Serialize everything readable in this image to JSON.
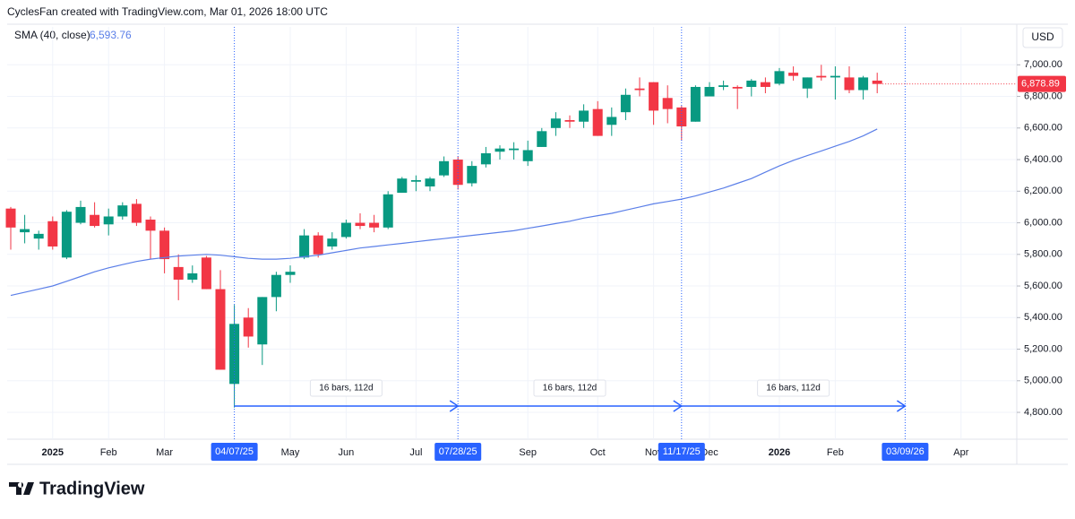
{
  "header": "CyclesFan created with TradingView.com, Mar 01, 2026 18:00 UTC",
  "logo": "TradingView",
  "chart_data": {
    "type": "candlestick",
    "currency": "USD",
    "up_color": "#089981",
    "down_color": "#f23645",
    "grid": true,
    "categories": [
      null,
      null,
      null,
      "2025",
      null,
      null,
      null,
      "Feb",
      null,
      null,
      null,
      "Mar",
      null,
      null,
      null,
      null,
      "04/07/25",
      null,
      null,
      null,
      "May",
      null,
      null,
      null,
      "Jun",
      null,
      null,
      null,
      null,
      "Jul",
      null,
      null,
      "07/28/25",
      null,
      null,
      null,
      null,
      "Sep",
      null,
      null,
      null,
      null,
      "Oct",
      null,
      null,
      null,
      "Nov",
      null,
      "11/17/25",
      null,
      "Dec",
      null,
      null,
      null,
      null,
      "2026",
      null,
      null,
      null,
      "Feb",
      null,
      null,
      null,
      null,
      "03/09/26",
      null,
      null,
      null,
      "Apr",
      null,
      null,
      null
    ],
    "open": [
      6090,
      5940,
      5900,
      6010,
      5780,
      6000,
      6050,
      5990,
      6040,
      6120,
      6020,
      5950,
      5720,
      5640,
      5780,
      5580,
      4980,
      5400,
      5230,
      5530,
      5670,
      5780,
      5920,
      5850,
      5910,
      6000,
      6000,
      5970,
      6190,
      6260,
      6230,
      6300,
      6400,
      6250,
      6370,
      6450,
      6460,
      6390,
      6480,
      6600,
      6650,
      6640,
      6720,
      6620,
      6700,
      6850,
      6890,
      6790,
      6730,
      6640,
      6800,
      6860,
      6860,
      6860,
      6890,
      6880,
      6950,
      6850,
      6930,
      6920,
      6920,
      6840,
      6900,
      null,
      null,
      null,
      null,
      null,
      null,
      null,
      null,
      null
    ],
    "high": [
      6100,
      6050,
      5950,
      6040,
      6080,
      6140,
      6130,
      6090,
      6130,
      6150,
      6040,
      5970,
      5800,
      5730,
      5790,
      5700,
      5480,
      5460,
      5530,
      5690,
      5730,
      5960,
      5940,
      5940,
      6020,
      6060,
      6050,
      6200,
      6290,
      6300,
      6290,
      6420,
      6420,
      6390,
      6480,
      6490,
      6510,
      6520,
      6600,
      6700,
      6680,
      6750,
      6770,
      6730,
      6850,
      6920,
      6890,
      6870,
      6740,
      6870,
      6890,
      6900,
      6870,
      6910,
      6920,
      6980,
      6990,
      6920,
      7000,
      6990,
      6990,
      6930,
      6950,
      null,
      null,
      null,
      null,
      null,
      null,
      null,
      null,
      null
    ],
    "low": [
      5830,
      5870,
      5830,
      5830,
      5770,
      5990,
      5970,
      5920,
      6020,
      5980,
      5770,
      5680,
      5510,
      5620,
      5580,
      5070,
      4830,
      5210,
      5100,
      5440,
      5620,
      5770,
      5780,
      5830,
      5900,
      5960,
      5940,
      5960,
      6190,
      6200,
      6200,
      6290,
      6210,
      6230,
      6350,
      6400,
      6400,
      6360,
      6480,
      6550,
      6600,
      6600,
      6550,
      6550,
      6650,
      6800,
      6620,
      6630,
      6520,
      6640,
      6800,
      6840,
      6720,
      6800,
      6820,
      6870,
      6900,
      6790,
      6900,
      6780,
      6820,
      6780,
      6820,
      null,
      null,
      null,
      null,
      null,
      null,
      null,
      null,
      null
    ],
    "close": [
      5970,
      5960,
      5930,
      5850,
      6070,
      6100,
      5980,
      6040,
      6110,
      6000,
      5950,
      5770,
      5640,
      5680,
      5580,
      5070,
      5360,
      5280,
      5530,
      5670,
      5690,
      5920,
      5800,
      5900,
      6000,
      5980,
      5970,
      6180,
      6280,
      6270,
      6280,
      6390,
      6240,
      6360,
      6440,
      6470,
      6470,
      6460,
      6580,
      6660,
      6640,
      6710,
      6550,
      6670,
      6810,
      6840,
      6710,
      6720,
      6610,
      6860,
      6860,
      6870,
      6850,
      6900,
      6860,
      6960,
      6930,
      6920,
      6920,
      6930,
      6840,
      6920,
      6878.89,
      null,
      null,
      null,
      null,
      null,
      null,
      null,
      null,
      null
    ],
    "close_label": "6,878.89",
    "sma": {
      "name": "SMA (40, close)",
      "color": "#5b7fe8",
      "value_label": "6,593.76",
      "values": [
        5540,
        5560,
        5580,
        5600,
        5630,
        5660,
        5690,
        5715,
        5735,
        5755,
        5770,
        5780,
        5790,
        5795,
        5800,
        5795,
        5785,
        5775,
        5770,
        5770,
        5775,
        5785,
        5795,
        5810,
        5825,
        5840,
        5850,
        5860,
        5870,
        5880,
        5890,
        5900,
        5910,
        5920,
        5930,
        5940,
        5950,
        5965,
        5980,
        5995,
        6010,
        6030,
        6045,
        6060,
        6080,
        6100,
        6120,
        6135,
        6150,
        6170,
        6195,
        6220,
        6250,
        6280,
        6320,
        6360,
        6395,
        6425,
        6455,
        6485,
        6515,
        6550,
        6593.76,
        null,
        null,
        null,
        null,
        null,
        null,
        null,
        null,
        null
      ]
    },
    "measure_labels": [
      "16 bars, 112d",
      "16 bars, 112d",
      "16 bars, 112d"
    ],
    "ylim": [
      4630,
      7240
    ],
    "yticks": [
      {
        "value": 4800,
        "label": "4,800.00"
      },
      {
        "value": 5000,
        "label": "5,000.00"
      },
      {
        "value": 5200,
        "label": "5,200.00"
      },
      {
        "value": 5400,
        "label": "5,400.00"
      },
      {
        "value": 5600,
        "label": "5,600.00"
      },
      {
        "value": 5800,
        "label": "5,800.00"
      },
      {
        "value": 6000,
        "label": "6,000.00"
      },
      {
        "value": 6200,
        "label": "6,200.00"
      },
      {
        "value": 6400,
        "label": "6,400.00"
      },
      {
        "value": 6600,
        "label": "6,600.00"
      },
      {
        "value": 6800,
        "label": "6,800.00"
      },
      {
        "value": 7000,
        "label": "7,000.00"
      }
    ]
  }
}
